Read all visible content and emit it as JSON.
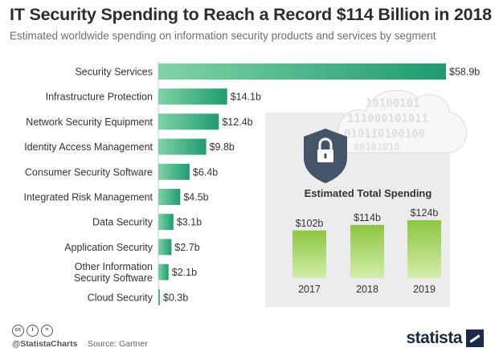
{
  "title": "IT Security Spending to Reach a Record $114 Billion in 2018",
  "subtitle": "Estimated worldwide spending on information security products and services by segment",
  "chart_data": [
    {
      "type": "bar",
      "orientation": "horizontal",
      "categories": [
        "Security Services",
        "Infrastructure Protection",
        "Network Security Equipment",
        "Identity Access Management",
        "Consumer Security Software",
        "Integrated Risk Management",
        "Data Security",
        "Application Security",
        "Other Information\nSecurity Software",
        "Cloud Security"
      ],
      "values": [
        58.9,
        14.1,
        12.4,
        9.8,
        6.4,
        4.5,
        3.1,
        2.7,
        2.1,
        0.3
      ],
      "labels": [
        "$58.9b",
        "$14.1b",
        "$12.4b",
        "$9.8b",
        "$6.4b",
        "$4.5b",
        "$3.1b",
        "$2.7b",
        "$2.1b",
        "$0.3b"
      ],
      "xlim": [
        0,
        58.9
      ],
      "grid": false,
      "colors": {
        "bar_start": "#7fd3a6",
        "bar_end": "#1e9c70"
      }
    },
    {
      "type": "bar",
      "title": "Estimated Total Spending",
      "categories": [
        "2017",
        "2018",
        "2019"
      ],
      "values": [
        102,
        114,
        124
      ],
      "labels": [
        "$102b",
        "$114b",
        "$124b"
      ],
      "ylim": [
        0,
        124
      ],
      "grid": false,
      "colors": {
        "bar_top": "#8cc63f",
        "bar_bottom": "#d3ecab",
        "panel": "#ececec"
      }
    }
  ],
  "cloud_text": "1010 0101 1110 0010 1011 0101 1010 0100 0010 1010",
  "footer": {
    "handle": "@StatistaCharts",
    "source": "Source: Gartner",
    "brand": "statista",
    "license_icons": [
      "cc-icon",
      "by-icon",
      "nd-icon"
    ]
  }
}
